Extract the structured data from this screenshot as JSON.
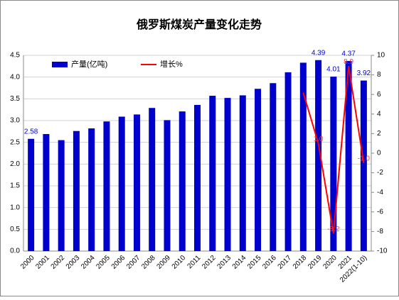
{
  "chart_data": {
    "type": "bar_line",
    "title": "俄罗斯煤炭产量变化走势",
    "categories": [
      "2000",
      "2001",
      "2002",
      "2003",
      "2004",
      "2005",
      "2006",
      "2007",
      "2008",
      "2009",
      "2010",
      "2011",
      "2012",
      "2013",
      "2014",
      "2015",
      "2016",
      "2017",
      "2018",
      "2019",
      "2020",
      "2021",
      "2022(1-10)"
    ],
    "series": [
      {
        "name": "产量(亿吨)",
        "type": "bar",
        "color": "#0000cc",
        "values": [
          2.58,
          2.69,
          2.55,
          2.76,
          2.82,
          2.98,
          3.09,
          3.14,
          3.29,
          3.01,
          3.21,
          3.36,
          3.57,
          3.52,
          3.58,
          3.73,
          3.86,
          4.11,
          4.33,
          4.39,
          4.01,
          4.37,
          3.92
        ],
        "value_labels": [
          "2.58",
          null,
          null,
          null,
          null,
          null,
          null,
          null,
          null,
          null,
          null,
          null,
          null,
          null,
          null,
          null,
          null,
          null,
          null,
          "4.39",
          "4.01",
          "4.37",
          "3.92"
        ]
      },
      {
        "name": "增长%",
        "type": "line",
        "axis": "y2",
        "color": "#ff0000",
        "values": [
          null,
          null,
          null,
          null,
          null,
          null,
          null,
          null,
          null,
          null,
          null,
          null,
          null,
          null,
          null,
          null,
          null,
          null,
          6.2,
          1.0,
          -8.2,
          8.9,
          -1.0
        ],
        "value_labels": [
          null,
          null,
          null,
          null,
          null,
          null,
          null,
          null,
          null,
          null,
          null,
          null,
          null,
          null,
          null,
          null,
          null,
          null,
          null,
          "1.0",
          "-8.2",
          "8.9",
          "-1.0"
        ]
      }
    ],
    "ylim": [
      0,
      4.5
    ],
    "yticks": [
      {
        "value": 0,
        "label": "0.0"
      },
      {
        "value": 0.5,
        "label": "0.5"
      },
      {
        "value": 1,
        "label": "1.0"
      },
      {
        "value": 1.5,
        "label": "1.5"
      },
      {
        "value": 2,
        "label": "2.0"
      },
      {
        "value": 2.5,
        "label": "2.5"
      },
      {
        "value": 3,
        "label": "3.0"
      },
      {
        "value": 3.5,
        "label": "3.5"
      },
      {
        "value": 4,
        "label": "4.0"
      },
      {
        "value": 4.5,
        "label": "4.5"
      }
    ],
    "y2lim": [
      -10,
      10
    ],
    "y2ticks": [
      -10,
      -8,
      -6,
      -4,
      -2,
      0,
      2,
      4,
      6,
      8,
      10
    ],
    "grid": true,
    "legend": "top-left"
  }
}
